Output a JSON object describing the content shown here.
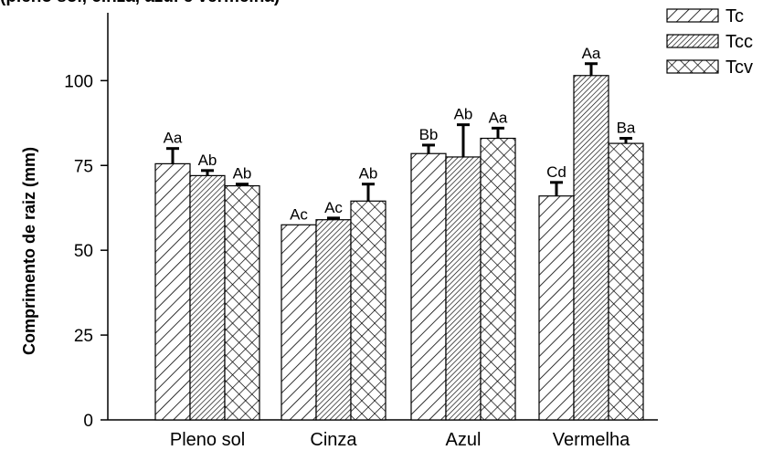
{
  "caption_fragment": "(pleno sol, cinza, azul e vermelha)",
  "chart_data": {
    "type": "bar",
    "title": "",
    "xlabel": "",
    "ylabel": "Comprimento de raiz (mm)",
    "ylim": [
      0,
      120
    ],
    "yticks": [
      "0",
      "25",
      "50",
      "75",
      "100"
    ],
    "categories": [
      "Pleno sol",
      "Cinza",
      "Azul",
      "Vermelha"
    ],
    "legend_position": "top-right",
    "series": [
      {
        "name": "Tc",
        "pattern": "diagonal-wide",
        "values": [
          75.5,
          57.5,
          78.5,
          66
        ],
        "errors": [
          4.5,
          0,
          2.5,
          4
        ],
        "labels": [
          "Aa",
          "Ac",
          "Bb",
          "Cd"
        ]
      },
      {
        "name": "Tcc",
        "pattern": "diagonal-dense",
        "values": [
          72,
          59,
          77.5,
          101.5
        ],
        "errors": [
          1.5,
          0.5,
          9.5,
          3.5
        ],
        "labels": [
          "Ab",
          "Ac",
          "Ab",
          "Aa"
        ]
      },
      {
        "name": "Tcv",
        "pattern": "crosshatch",
        "values": [
          69,
          64.5,
          83,
          81.5
        ],
        "errors": [
          0.5,
          5,
          3,
          1.5
        ],
        "labels": [
          "Ab",
          "Ab",
          "Aa",
          "Ba"
        ]
      }
    ]
  }
}
